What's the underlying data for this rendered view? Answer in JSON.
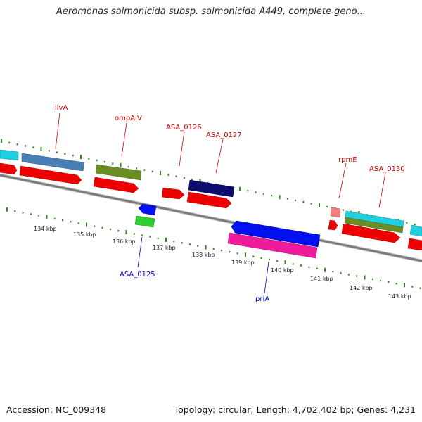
{
  "header": {
    "title": "Aeromonas salmonicida subsp. salmonicida A449, complete geno..."
  },
  "footer": {
    "accession": "Accession: NC_009348",
    "summary": "Topology: circular; Length: 4,702,402 bp; Genes: 4,231"
  },
  "map": {
    "tick_labels": [
      "134 kbp",
      "135 kbp",
      "136 kbp",
      "137 kbp",
      "138 kbp",
      "139 kbp",
      "140 kbp",
      "141 kbp",
      "142 kbp",
      "143 kbp"
    ],
    "forward_gene_labels": [
      "ilvA",
      "ompAIV",
      "ASA_0126",
      "ASA_0127",
      "rpmE",
      "ASA_0130"
    ],
    "reverse_gene_labels": [
      "ASA_0125",
      "priA"
    ],
    "colors": {
      "red_gene": "#ee0000",
      "steelblue": "#4a7fb5",
      "olive": "#6b8e23",
      "navy": "#0b0b70",
      "cyan": "#1fd0e0",
      "blue": "#0010ee",
      "green": "#2fcf2f",
      "magenta": "#ee1c9a",
      "pink": "#f08080",
      "label_forward": "#d10000",
      "label_reverse": "#0000cc",
      "tick_green": "#2e8b1e",
      "backbone": "#888888"
    }
  }
}
